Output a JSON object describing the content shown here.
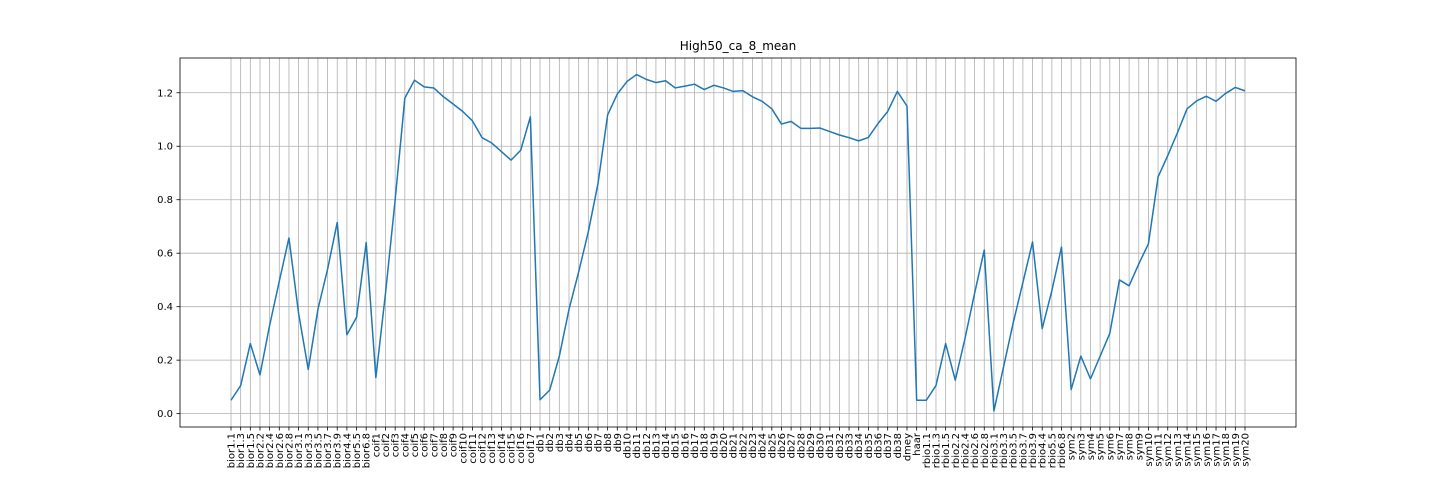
{
  "chart_data": {
    "type": "line",
    "title": "High50_ca_8_mean",
    "xlabel": "",
    "ylabel": "",
    "ylim": [
      -0.05,
      1.33
    ],
    "yticks": [
      0.0,
      0.2,
      0.4,
      0.6,
      0.8,
      1.0,
      1.2
    ],
    "ytick_labels": [
      "0.0",
      "0.2",
      "0.4",
      "0.6",
      "0.8",
      "1.0",
      "1.2"
    ],
    "grid": true,
    "line_color": "#1f77b4",
    "categories": [
      "bior1.1",
      "bior1.3",
      "bior1.5",
      "bior2.2",
      "bior2.4",
      "bior2.6",
      "bior2.8",
      "bior3.1",
      "bior3.3",
      "bior3.5",
      "bior3.7",
      "bior3.9",
      "bior4.4",
      "bior5.5",
      "bior6.8",
      "coif1",
      "coif2",
      "coif3",
      "coif4",
      "coif5",
      "coif6",
      "coif7",
      "coif8",
      "coif9",
      "coif10",
      "coif11",
      "coif12",
      "coif13",
      "coif14",
      "coif15",
      "coif16",
      "coif17",
      "db1",
      "db2",
      "db3",
      "db4",
      "db5",
      "db6",
      "db7",
      "db8",
      "db9",
      "db10",
      "db11",
      "db12",
      "db13",
      "db14",
      "db15",
      "db16",
      "db17",
      "db18",
      "db19",
      "db20",
      "db21",
      "db22",
      "db23",
      "db24",
      "db25",
      "db26",
      "db27",
      "db28",
      "db29",
      "db30",
      "db31",
      "db32",
      "db33",
      "db34",
      "db35",
      "db36",
      "db37",
      "db38",
      "dmey",
      "haar",
      "rbio1.1",
      "rbio1.3",
      "rbio1.5",
      "rbio2.2",
      "rbio2.4",
      "rbio2.6",
      "rbio2.8",
      "rbio3.1",
      "rbio3.3",
      "rbio3.5",
      "rbio3.7",
      "rbio3.9",
      "rbio4.4",
      "rbio5.5",
      "rbio6.8",
      "sym2",
      "sym3",
      "sym4",
      "sym5",
      "sym6",
      "sym7",
      "sym8",
      "sym9",
      "sym10",
      "sym11",
      "sym12",
      "sym13",
      "sym14",
      "sym15",
      "sym16",
      "sym17",
      "sym18",
      "sym19",
      "sym20"
    ],
    "series": [
      {
        "name": "High50_ca_8_mean",
        "values": [
          0.05,
          0.105,
          0.262,
          0.145,
          0.33,
          0.495,
          0.657,
          0.375,
          0.165,
          0.39,
          0.54,
          0.715,
          0.295,
          0.36,
          0.64,
          0.135,
          0.45,
          0.8,
          1.18,
          1.247,
          1.222,
          1.218,
          1.185,
          1.158,
          1.13,
          1.095,
          1.032,
          1.012,
          0.98,
          0.948,
          0.985,
          1.11,
          0.052,
          0.088,
          0.215,
          0.39,
          0.53,
          0.68,
          0.86,
          1.117,
          1.195,
          1.242,
          1.268,
          1.25,
          1.238,
          1.245,
          1.218,
          1.225,
          1.232,
          1.212,
          1.228,
          1.218,
          1.205,
          1.208,
          1.185,
          1.168,
          1.14,
          1.083,
          1.093,
          1.067,
          1.067,
          1.068,
          1.055,
          1.042,
          1.032,
          1.02,
          1.033,
          1.085,
          1.13,
          1.205,
          1.15,
          0.05,
          0.05,
          0.105,
          0.262,
          0.125,
          0.28,
          0.45,
          0.612,
          0.01,
          0.175,
          0.34,
          0.49,
          0.642,
          0.318,
          0.46,
          0.623,
          0.09,
          0.215,
          0.13,
          0.215,
          0.3,
          0.5,
          0.478,
          0.56,
          0.635,
          0.885,
          0.965,
          1.05,
          1.14,
          1.17,
          1.187,
          1.168,
          1.198,
          1.22,
          1.207
        ]
      }
    ]
  }
}
